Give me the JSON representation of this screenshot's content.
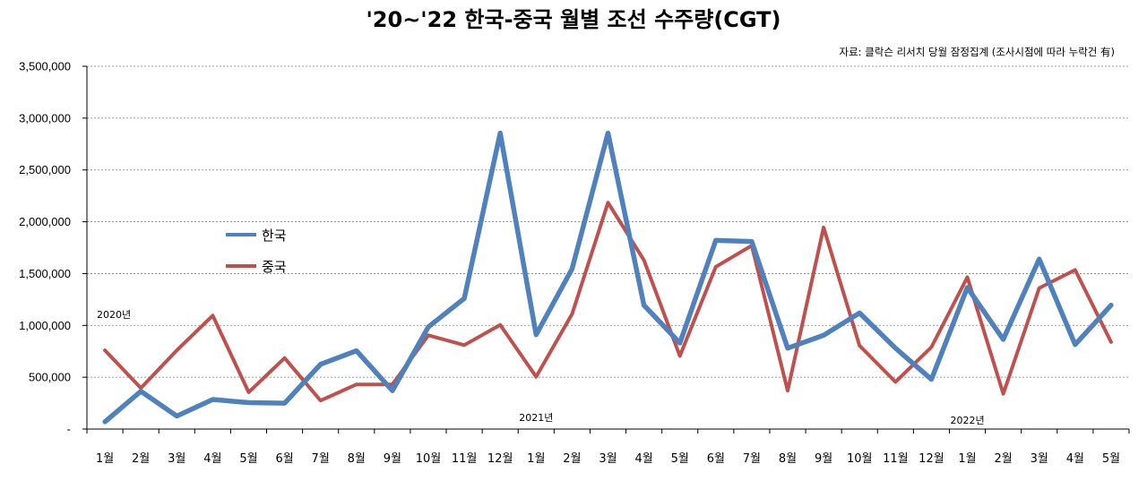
{
  "chart_data": {
    "type": "line",
    "title": "'20~'22 한국-중국 월별 조선 수주량(CGT)",
    "source_note": "자료: 클락슨 리서치 당월 잠정집계 (조사시점에 따라 누락건 有)",
    "categories": [
      "1월",
      "2월",
      "3월",
      "4월",
      "5월",
      "6월",
      "7월",
      "8월",
      "9월",
      "10월",
      "11월",
      "12월",
      "1월",
      "2월",
      "3월",
      "4월",
      "5월",
      "6월",
      "7월",
      "8월",
      "9월",
      "10월",
      "11월",
      "12월",
      "1월",
      "2월",
      "3월",
      "4월",
      "5월"
    ],
    "year_labels": [
      {
        "label": "2020년",
        "index": 0
      },
      {
        "label": "2021년",
        "index": 12
      },
      {
        "label": "2022년",
        "index": 24
      }
    ],
    "y_tick_labels": [
      "-",
      "500,000",
      "1,000,000",
      "1,500,000",
      "2,000,000",
      "2,500,000",
      "3,000,000",
      "3,500,000"
    ],
    "ylim": [
      0,
      3500000
    ],
    "y_step": 500000,
    "grid": true,
    "legend_position": "left-middle",
    "series": [
      {
        "name": "한국",
        "color": "#4F81BD",
        "values": [
          70000,
          365000,
          125000,
          285000,
          255000,
          250000,
          625000,
          755000,
          370000,
          985000,
          1260000,
          2855000,
          910000,
          1545000,
          2855000,
          1195000,
          830000,
          1820000,
          1810000,
          780000,
          905000,
          1120000,
          780000,
          480000,
          1365000,
          865000,
          1640000,
          815000,
          1195000
        ]
      },
      {
        "name": "중국",
        "color": "#C0504D",
        "values": [
          760000,
          395000,
          760000,
          1095000,
          355000,
          685000,
          275000,
          430000,
          430000,
          905000,
          810000,
          1005000,
          505000,
          1110000,
          2185000,
          1630000,
          705000,
          1565000,
          1770000,
          370000,
          1945000,
          805000,
          455000,
          790000,
          1465000,
          340000,
          1360000,
          1535000,
          840000
        ]
      }
    ]
  }
}
